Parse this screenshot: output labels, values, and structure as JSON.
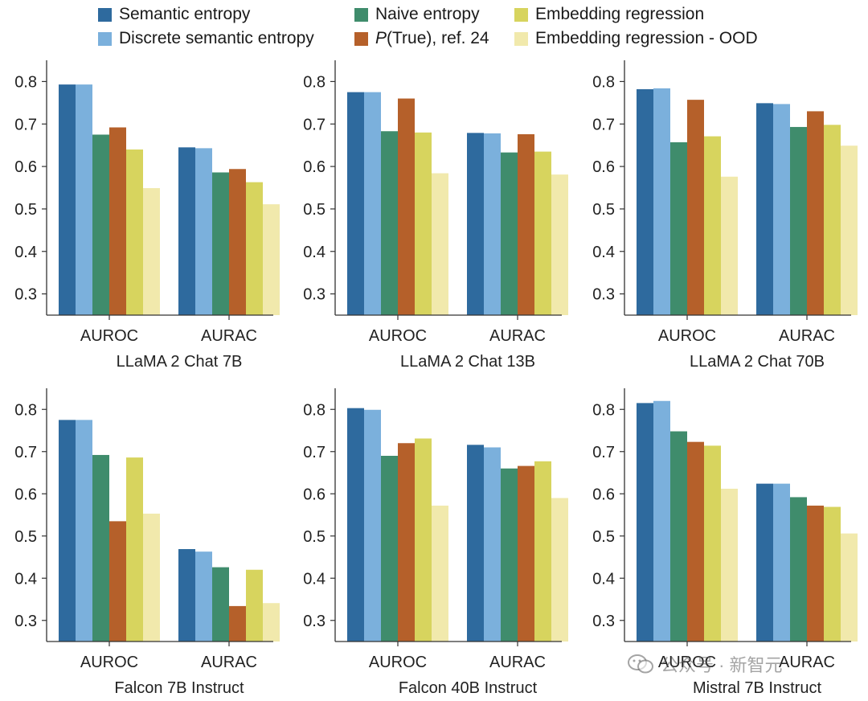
{
  "legend": {
    "items": [
      {
        "key": "se",
        "label": "Semantic entropy",
        "color": "#2e6a9e"
      },
      {
        "key": "dse",
        "label": "Discrete semantic entropy",
        "color": "#7bb0dc"
      },
      {
        "key": "ne",
        "label": "Naive entropy",
        "color": "#3f8c6c"
      },
      {
        "key": "pt",
        "label_italic": "P",
        "label": "(True), ref. 24",
        "color": "#b5602a"
      },
      {
        "key": "er",
        "label": "Embedding regression",
        "color": "#d7d45e"
      },
      {
        "key": "ood",
        "label": "Embedding regression - OOD",
        "color": "#f1e9ac"
      }
    ]
  },
  "chart_data": [
    {
      "type": "bar",
      "title": "LLaMA 2 Chat 7B",
      "categories": [
        "AUROC",
        "AURAC"
      ],
      "ylim": [
        0.25,
        0.85
      ],
      "yticks": [
        "0.3",
        "0.4",
        "0.5",
        "0.6",
        "0.7",
        "0.8"
      ],
      "series": [
        {
          "name": "Semantic entropy",
          "values": [
            0.793,
            0.645
          ]
        },
        {
          "name": "Discrete semantic entropy",
          "values": [
            0.793,
            0.643
          ]
        },
        {
          "name": "Naive entropy",
          "values": [
            0.675,
            0.586
          ]
        },
        {
          "name": "P(True), ref. 24",
          "values": [
            0.692,
            0.594
          ]
        },
        {
          "name": "Embedding regression",
          "values": [
            0.64,
            0.563
          ]
        },
        {
          "name": "Embedding regression - OOD",
          "values": [
            0.549,
            0.511
          ]
        }
      ]
    },
    {
      "type": "bar",
      "title": "LLaMA 2 Chat 13B",
      "categories": [
        "AUROC",
        "AURAC"
      ],
      "ylim": [
        0.25,
        0.85
      ],
      "yticks": [
        "0.3",
        "0.4",
        "0.5",
        "0.6",
        "0.7",
        "0.8"
      ],
      "series": [
        {
          "name": "Semantic entropy",
          "values": [
            0.775,
            0.679
          ]
        },
        {
          "name": "Discrete semantic entropy",
          "values": [
            0.775,
            0.678
          ]
        },
        {
          "name": "Naive entropy",
          "values": [
            0.683,
            0.633
          ]
        },
        {
          "name": "P(True), ref. 24",
          "values": [
            0.76,
            0.676
          ]
        },
        {
          "name": "Embedding regression",
          "values": [
            0.68,
            0.635
          ]
        },
        {
          "name": "Embedding regression - OOD",
          "values": [
            0.584,
            0.581
          ]
        }
      ]
    },
    {
      "type": "bar",
      "title": "LLaMA 2 Chat 70B",
      "categories": [
        "AUROC",
        "AURAC"
      ],
      "ylim": [
        0.25,
        0.85
      ],
      "yticks": [
        "0.3",
        "0.4",
        "0.5",
        "0.6",
        "0.7",
        "0.8"
      ],
      "series": [
        {
          "name": "Semantic entropy",
          "values": [
            0.782,
            0.749
          ]
        },
        {
          "name": "Discrete semantic entropy",
          "values": [
            0.784,
            0.747
          ]
        },
        {
          "name": "Naive entropy",
          "values": [
            0.657,
            0.693
          ]
        },
        {
          "name": "P(True), ref. 24",
          "values": [
            0.757,
            0.73
          ]
        },
        {
          "name": "Embedding regression",
          "values": [
            0.671,
            0.698
          ]
        },
        {
          "name": "Embedding regression - OOD",
          "values": [
            0.576,
            0.649
          ]
        }
      ]
    },
    {
      "type": "bar",
      "title": "Falcon 7B Instruct",
      "categories": [
        "AUROC",
        "AURAC"
      ],
      "ylim": [
        0.25,
        0.85
      ],
      "yticks": [
        "0.3",
        "0.4",
        "0.5",
        "0.6",
        "0.7",
        "0.8"
      ],
      "series": [
        {
          "name": "Semantic entropy",
          "values": [
            0.775,
            0.469
          ]
        },
        {
          "name": "Discrete semantic entropy",
          "values": [
            0.775,
            0.463
          ]
        },
        {
          "name": "Naive entropy",
          "values": [
            0.692,
            0.426
          ]
        },
        {
          "name": "P(True), ref. 24",
          "values": [
            0.535,
            0.334
          ]
        },
        {
          "name": "Embedding regression",
          "values": [
            0.686,
            0.42
          ]
        },
        {
          "name": "Embedding regression - OOD",
          "values": [
            0.553,
            0.341
          ]
        }
      ]
    },
    {
      "type": "bar",
      "title": "Falcon 40B Instruct",
      "categories": [
        "AUROC",
        "AURAC"
      ],
      "ylim": [
        0.25,
        0.85
      ],
      "yticks": [
        "0.3",
        "0.4",
        "0.5",
        "0.6",
        "0.7",
        "0.8"
      ],
      "series": [
        {
          "name": "Semantic entropy",
          "values": [
            0.803,
            0.716
          ]
        },
        {
          "name": "Discrete semantic entropy",
          "values": [
            0.799,
            0.71
          ]
        },
        {
          "name": "Naive entropy",
          "values": [
            0.69,
            0.66
          ]
        },
        {
          "name": "P(True), ref. 24",
          "values": [
            0.72,
            0.666
          ]
        },
        {
          "name": "Embedding regression",
          "values": [
            0.731,
            0.677
          ]
        },
        {
          "name": "Embedding regression - OOD",
          "values": [
            0.572,
            0.59
          ]
        }
      ]
    },
    {
      "type": "bar",
      "title": "Mistral 7B Instruct",
      "categories": [
        "AUROC",
        "AURAC"
      ],
      "ylim": [
        0.25,
        0.85
      ],
      "yticks": [
        "0.3",
        "0.4",
        "0.5",
        "0.6",
        "0.7",
        "0.8"
      ],
      "series": [
        {
          "name": "Semantic entropy",
          "values": [
            0.815,
            0.624
          ]
        },
        {
          "name": "Discrete semantic entropy",
          "values": [
            0.82,
            0.624
          ]
        },
        {
          "name": "Naive entropy",
          "values": [
            0.748,
            0.592
          ]
        },
        {
          "name": "P(True), ref. 24",
          "values": [
            0.723,
            0.572
          ]
        },
        {
          "name": "Embedding regression",
          "values": [
            0.714,
            0.569
          ]
        },
        {
          "name": "Embedding regression - OOD",
          "values": [
            0.612,
            0.506
          ]
        }
      ]
    }
  ],
  "watermark": {
    "text": "公众号 · 新智元",
    "icon": "wechat-icon"
  }
}
